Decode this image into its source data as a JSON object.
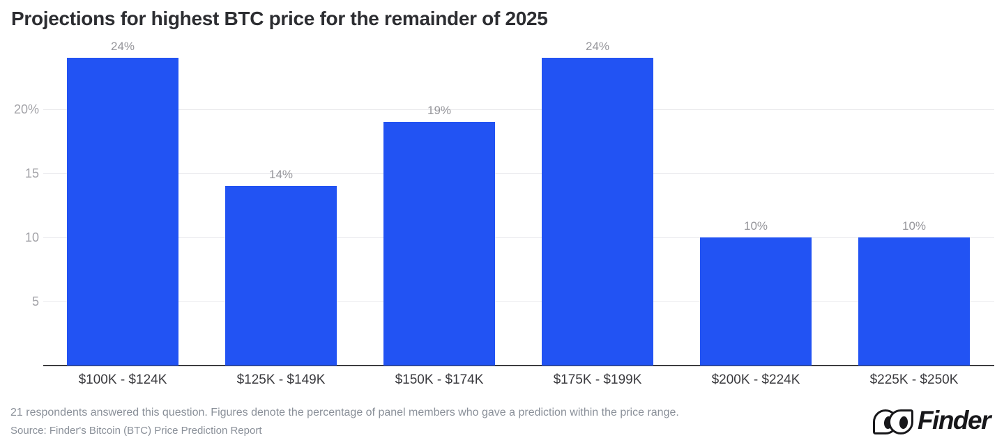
{
  "chart": {
    "title": "Projections for highest BTC price for the remainder of 2025"
  },
  "chart_data": {
    "type": "bar",
    "title": "Projections for highest BTC price for the remainder of 2025",
    "categories": [
      "$100K - $124K",
      "$125K - $149K",
      "$150K - $174K",
      "$175K - $199K",
      "$200K - $224K",
      "$225K - $250K"
    ],
    "values": [
      24,
      14,
      19,
      24,
      10,
      10
    ],
    "value_labels": [
      "24%",
      "14%",
      "19%",
      "24%",
      "10%",
      "10%"
    ],
    "xlabel": "",
    "ylabel": "",
    "ylim": [
      0,
      25.3
    ],
    "yticks": [
      5,
      10,
      15,
      20
    ],
    "ytick_labels": [
      "5",
      "10",
      "15",
      "20%"
    ],
    "grid": "horizontal",
    "legend": "none",
    "bar_color": "#2253f3"
  },
  "footer": {
    "note": "21 respondents answered this question. Figures denote the percentage of panel members who gave a prediction within the price range.",
    "source": "Source: Finder's Bitcoin (BTC) Price Prediction Report"
  },
  "logo": {
    "text": "Finder"
  },
  "colors": {
    "bar": "#2253f3",
    "title": "#2c2d31",
    "value_label": "#96969b",
    "ytick": "#a3a3a8",
    "xtick": "#3a3a3e",
    "gridline": "#e9e9ec",
    "axis": "#3d3d40",
    "footer": "#8a9099",
    "logo": "#17171a",
    "background": "#ffffff"
  }
}
